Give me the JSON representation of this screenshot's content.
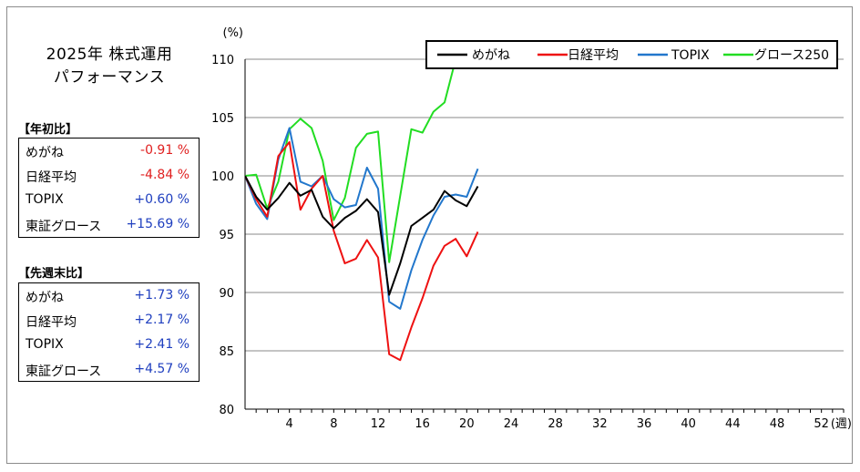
{
  "title": {
    "line1": "2025年 株式運用",
    "line2": "パフォーマンス"
  },
  "ytd": {
    "label": "【年初比】",
    "rows": [
      {
        "name": "めがね",
        "value": "-0.91 %",
        "sign": "neg"
      },
      {
        "name": "日経平均",
        "value": "-4.84 %",
        "sign": "neg"
      },
      {
        "name": "TOPIX",
        "value": "+0.60 %",
        "sign": "pos"
      },
      {
        "name": "東証グロース",
        "value": "+15.69 %",
        "sign": "pos"
      }
    ]
  },
  "wow": {
    "label": "【先週末比】",
    "rows": [
      {
        "name": "めがね",
        "value": "+1.73 %",
        "sign": "pos"
      },
      {
        "name": "日経平均",
        "value": "+2.17 %",
        "sign": "pos"
      },
      {
        "name": "TOPIX",
        "value": "+2.41 %",
        "sign": "pos"
      },
      {
        "name": "東証グロース",
        "value": "+4.57 %",
        "sign": "pos"
      }
    ]
  },
  "chart_data": {
    "type": "line",
    "ylabel": "(%)",
    "xlabel": "(週)",
    "ylim": [
      80,
      110
    ],
    "yticks": [
      80,
      85,
      90,
      95,
      100,
      105,
      110
    ],
    "xlim": [
      0,
      54
    ],
    "xticks": [
      4,
      8,
      12,
      16,
      20,
      24,
      28,
      32,
      36,
      40,
      44,
      48,
      52
    ],
    "grid": true,
    "legend": "top-right",
    "series": [
      {
        "name": "めがね",
        "color": "#000000",
        "x": [
          0,
          1,
          2,
          3,
          4,
          5,
          6,
          7,
          8,
          9,
          10,
          11,
          12,
          13,
          14,
          15,
          16,
          17,
          18,
          19,
          20,
          21
        ],
        "values": [
          100,
          98.2,
          97.1,
          98.1,
          99.4,
          98.3,
          98.8,
          96.5,
          95.5,
          96.4,
          97.0,
          98.0,
          96.9,
          89.8,
          92.5,
          95.7,
          96.4,
          97.1,
          98.7,
          97.9,
          97.4,
          99.1
        ]
      },
      {
        "name": "日経平均",
        "color": "#ee1111",
        "x": [
          0,
          1,
          2,
          3,
          4,
          5,
          6,
          7,
          8,
          9,
          10,
          11,
          12,
          13,
          14,
          15,
          16,
          17,
          18,
          19,
          20,
          21
        ],
        "values": [
          100,
          98.0,
          96.5,
          101.7,
          102.9,
          97.1,
          98.9,
          100.0,
          95.3,
          92.5,
          92.9,
          94.5,
          93.0,
          84.7,
          84.2,
          87.0,
          89.5,
          92.3,
          94.0,
          94.6,
          93.1,
          95.2
        ]
      },
      {
        "name": "TOPIX",
        "color": "#2277cc",
        "x": [
          0,
          1,
          2,
          3,
          4,
          5,
          6,
          7,
          8,
          9,
          10,
          11,
          12,
          13,
          14,
          15,
          16,
          17,
          18,
          19,
          20,
          21
        ],
        "values": [
          100,
          97.6,
          96.3,
          101.4,
          104.1,
          99.5,
          99.1,
          100.0,
          98.0,
          97.3,
          97.5,
          100.7,
          98.9,
          89.2,
          88.6,
          91.9,
          94.5,
          96.6,
          98.2,
          98.4,
          98.2,
          100.6
        ]
      },
      {
        "name": "グロース250",
        "color": "#22dd22",
        "x": [
          0,
          1,
          2,
          3,
          4,
          5,
          6,
          7,
          8,
          9,
          10,
          11,
          12,
          13,
          14,
          15,
          16,
          17,
          18,
          19
        ],
        "values": [
          100,
          100.1,
          97.2,
          99.5,
          104.0,
          104.9,
          104.1,
          101.3,
          96.2,
          98.1,
          102.4,
          103.6,
          103.8,
          92.6,
          98.3,
          104.0,
          103.7,
          105.5,
          106.3,
          110.0
        ]
      }
    ]
  }
}
